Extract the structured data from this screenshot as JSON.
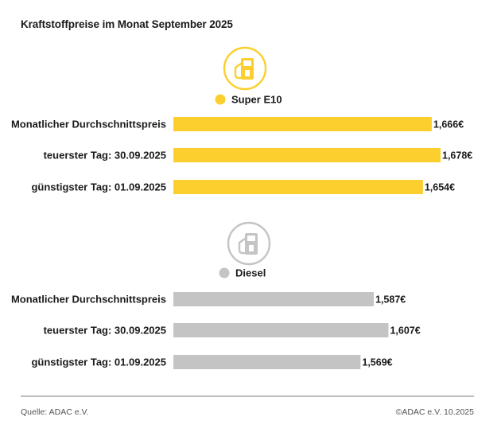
{
  "title": "Kraftstoffpreise im Monat September 2025",
  "footer": {
    "source": "Quelle: ADAC e.V.",
    "copyright": "©ADAC e.V. 10.2025"
  },
  "colors": {
    "super": "#fccf2e",
    "diesel": "#c4c4c4",
    "icon_super_ring": "#fccf2e",
    "icon_diesel_ring": "#c4c4c4"
  },
  "chart_data": [
    {
      "type": "bar",
      "orientation": "horizontal",
      "legend": "Super E10",
      "icon": "fuel-pump-icon",
      "color": "#fccf2e",
      "categories": [
        "Monatlicher Durchschnittspreis",
        "teuerster Tag: 30.09.2025",
        "günstigster Tag: 01.09.2025"
      ],
      "values": [
        1.666,
        1.678,
        1.654
      ],
      "value_labels": [
        "1,666€",
        "1,678€",
        "1,654€"
      ]
    },
    {
      "type": "bar",
      "orientation": "horizontal",
      "legend": "Diesel",
      "icon": "fuel-pump-icon",
      "color": "#c4c4c4",
      "categories": [
        "Monatlicher Durchschnittspreis",
        "teuerster Tag: 30.09.2025",
        "günstigster Tag: 01.09.2025"
      ],
      "values": [
        1.587,
        1.607,
        1.569
      ],
      "value_labels": [
        "1,587€",
        "1,607€",
        "1,569€"
      ]
    }
  ]
}
